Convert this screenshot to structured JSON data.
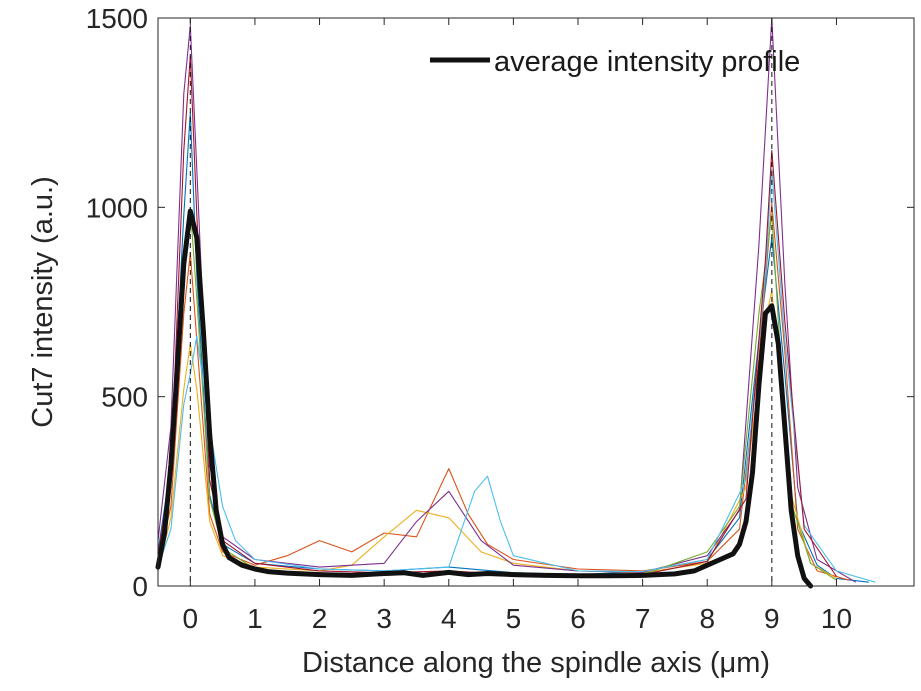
{
  "chart_data": {
    "type": "line",
    "title": "",
    "xlabel": "Distance along the spindle axis (μm)",
    "ylabel": "Cut7 intensity (a.u.)",
    "xlim": [
      -0.5,
      11.2
    ],
    "ylim": [
      0,
      1500
    ],
    "xticks": [
      0,
      1,
      2,
      3,
      4,
      5,
      6,
      7,
      8,
      9,
      10
    ],
    "yticks": [
      0,
      500,
      1000,
      1500
    ],
    "grid": false,
    "legend_position": "top-right",
    "reference_lines": [
      0,
      9
    ],
    "series_colors": [
      "#0072bd",
      "#d95319",
      "#edb120",
      "#7e2f8e",
      "#77ac30",
      "#4dbeee",
      "#a2142f"
    ],
    "average_color": "#111111",
    "series": [
      {
        "name": "average intensity profile",
        "x": [
          -0.5,
          -0.4,
          -0.3,
          -0.2,
          -0.1,
          0.0,
          0.1,
          0.2,
          0.3,
          0.4,
          0.5,
          0.6,
          0.8,
          1.0,
          1.2,
          1.5,
          2.0,
          2.5,
          3.0,
          3.3,
          3.6,
          4.0,
          4.3,
          4.6,
          5.0,
          5.5,
          6.0,
          6.5,
          7.0,
          7.5,
          7.8,
          8.0,
          8.2,
          8.4,
          8.5,
          8.6,
          8.7,
          8.8,
          8.9,
          9.0,
          9.1,
          9.2,
          9.3,
          9.4,
          9.5,
          9.6
        ],
        "y": [
          50,
          140,
          320,
          580,
          850,
          990,
          920,
          680,
          400,
          200,
          110,
          75,
          55,
          45,
          38,
          34,
          30,
          28,
          33,
          35,
          28,
          36,
          30,
          33,
          30,
          28,
          27,
          27,
          28,
          32,
          40,
          55,
          70,
          85,
          110,
          170,
          300,
          530,
          720,
          740,
          640,
          420,
          200,
          80,
          20,
          0
        ]
      },
      {
        "x": [
          -0.5,
          -0.3,
          -0.1,
          0.0,
          0.1,
          0.3,
          0.5,
          1.0,
          2.0,
          3.0,
          4.0,
          5.0,
          6.0,
          7.0,
          8.0,
          8.5,
          8.8,
          9.0,
          9.2,
          9.4,
          9.7,
          10.0,
          10.5
        ],
        "y": [
          90,
          320,
          980,
          1250,
          820,
          240,
          110,
          60,
          45,
          40,
          50,
          35,
          30,
          38,
          70,
          180,
          650,
          920,
          560,
          170,
          55,
          20,
          10
        ]
      },
      {
        "x": [
          -0.5,
          -0.3,
          -0.1,
          0.0,
          0.1,
          0.3,
          0.5,
          1.0,
          1.5,
          2.0,
          2.5,
          3.0,
          3.5,
          4.0,
          4.3,
          4.6,
          5.0,
          6.0,
          7.0,
          8.0,
          8.5,
          8.8,
          9.0,
          9.2,
          9.4,
          9.7,
          10.2
        ],
        "y": [
          60,
          210,
          720,
          880,
          650,
          190,
          90,
          55,
          80,
          120,
          90,
          140,
          130,
          310,
          190,
          110,
          70,
          45,
          40,
          65,
          150,
          600,
          1010,
          620,
          150,
          40,
          15
        ]
      },
      {
        "x": [
          -0.5,
          -0.3,
          -0.1,
          0.0,
          0.1,
          0.3,
          0.5,
          1.0,
          2.0,
          2.5,
          3.0,
          3.5,
          4.0,
          4.5,
          5.0,
          6.0,
          7.0,
          8.0,
          8.6,
          8.9,
          9.0,
          9.1,
          9.3,
          9.6,
          10.0
        ],
        "y": [
          40,
          180,
          520,
          640,
          520,
          170,
          80,
          50,
          40,
          55,
          130,
          200,
          180,
          90,
          60,
          40,
          35,
          60,
          260,
          700,
          780,
          600,
          240,
          60,
          20
        ]
      },
      {
        "x": [
          -0.5,
          -0.3,
          -0.1,
          0.0,
          0.1,
          0.3,
          0.5,
          1.0,
          2.0,
          3.0,
          3.5,
          4.0,
          4.5,
          5.0,
          6.0,
          7.0,
          8.0,
          8.5,
          8.8,
          9.0,
          9.2,
          9.4,
          9.7,
          10.3
        ],
        "y": [
          120,
          420,
          1300,
          1480,
          1100,
          320,
          130,
          70,
          50,
          60,
          170,
          250,
          120,
          55,
          40,
          36,
          80,
          200,
          900,
          1500,
          800,
          260,
          70,
          10
        ]
      },
      {
        "x": [
          -0.5,
          -0.3,
          -0.1,
          0.0,
          0.1,
          0.3,
          0.5,
          1.0,
          2.0,
          3.0,
          4.0,
          5.0,
          6.0,
          7.0,
          7.5,
          8.0,
          8.5,
          8.8,
          9.0,
          9.1,
          9.3,
          9.6,
          10.0
        ],
        "y": [
          70,
          260,
          850,
          1000,
          760,
          230,
          100,
          45,
          30,
          28,
          35,
          30,
          25,
          30,
          60,
          90,
          210,
          720,
          980,
          700,
          220,
          60,
          15
        ]
      },
      {
        "x": [
          -0.5,
          -0.3,
          -0.1,
          0.0,
          0.1,
          0.3,
          0.5,
          0.7,
          1.0,
          2.0,
          3.0,
          4.0,
          4.4,
          4.6,
          4.8,
          5.0,
          6.0,
          7.0,
          8.0,
          8.6,
          8.9,
          9.0,
          9.2,
          9.5,
          10.0,
          10.6
        ],
        "y": [
          50,
          150,
          480,
          560,
          660,
          420,
          210,
          120,
          70,
          45,
          40,
          50,
          250,
          290,
          170,
          80,
          40,
          38,
          70,
          280,
          820,
          1100,
          650,
          160,
          40,
          10
        ]
      },
      {
        "x": [
          -0.5,
          -0.3,
          -0.1,
          0.0,
          0.1,
          0.3,
          0.5,
          1.0,
          2.0,
          3.0,
          4.0,
          5.0,
          6.0,
          7.0,
          8.0,
          8.6,
          8.9,
          9.0,
          9.2,
          9.5,
          10.0
        ],
        "y": [
          80,
          300,
          1150,
          1400,
          980,
          280,
          120,
          60,
          40,
          35,
          40,
          30,
          28,
          30,
          65,
          230,
          860,
          1150,
          700,
          150,
          25
        ]
      }
    ]
  }
}
